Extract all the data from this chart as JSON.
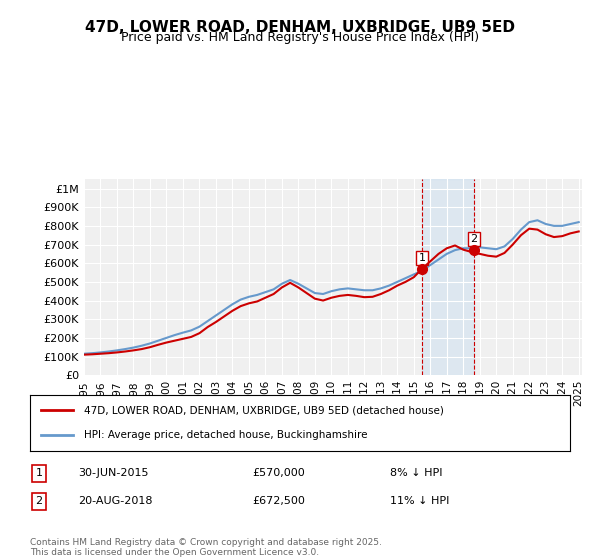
{
  "title": "47D, LOWER ROAD, DENHAM, UXBRIDGE, UB9 5ED",
  "subtitle": "Price paid vs. HM Land Registry's House Price Index (HPI)",
  "ylabel": "",
  "ylim": [
    0,
    1050000
  ],
  "yticks": [
    0,
    100000,
    200000,
    300000,
    400000,
    500000,
    600000,
    700000,
    800000,
    900000,
    1000000
  ],
  "ytick_labels": [
    "£0",
    "£100K",
    "£200K",
    "£300K",
    "£400K",
    "£500K",
    "£600K",
    "£700K",
    "£800K",
    "£900K",
    "£1M"
  ],
  "background_color": "#ffffff",
  "plot_bg_color": "#f0f0f0",
  "legend_label_red": "47D, LOWER ROAD, DENHAM, UXBRIDGE, UB9 5ED (detached house)",
  "legend_label_blue": "HPI: Average price, detached house, Buckinghamshire",
  "footer": "Contains HM Land Registry data © Crown copyright and database right 2025.\nThis data is licensed under the Open Government Licence v3.0.",
  "purchase1_date": "30-JUN-2015",
  "purchase1_price": "£570,000",
  "purchase1_hpi": "8% ↓ HPI",
  "purchase2_date": "20-AUG-2018",
  "purchase2_price": "£672,500",
  "purchase2_hpi": "11% ↓ HPI",
  "hpi_color": "#6699cc",
  "price_color": "#cc0000",
  "shade_color": "#cce0f0",
  "marker1_x": 2015.5,
  "marker1_y": 570000,
  "marker2_x": 2018.65,
  "marker2_y": 672500,
  "shade1_x": 2015.5,
  "shade2_x": 2018.65,
  "hpi_data_x": [
    1995,
    1995.5,
    1996,
    1996.5,
    1997,
    1997.5,
    1998,
    1998.5,
    1999,
    1999.5,
    2000,
    2000.5,
    2001,
    2001.5,
    2002,
    2002.5,
    2003,
    2003.5,
    2004,
    2004.5,
    2005,
    2005.5,
    2006,
    2006.5,
    2007,
    2007.5,
    2008,
    2008.5,
    2009,
    2009.5,
    2010,
    2010.5,
    2011,
    2011.5,
    2012,
    2012.5,
    2013,
    2013.5,
    2014,
    2014.5,
    2015,
    2015.5,
    2016,
    2016.5,
    2017,
    2017.5,
    2018,
    2018.5,
    2019,
    2019.5,
    2020,
    2020.5,
    2021,
    2021.5,
    2022,
    2022.5,
    2023,
    2023.5,
    2024,
    2024.5,
    2025
  ],
  "hpi_data_y": [
    115000,
    118000,
    122000,
    127000,
    133000,
    140000,
    148000,
    158000,
    170000,
    185000,
    200000,
    215000,
    228000,
    240000,
    260000,
    290000,
    320000,
    350000,
    380000,
    405000,
    420000,
    430000,
    445000,
    460000,
    490000,
    510000,
    490000,
    465000,
    440000,
    435000,
    450000,
    460000,
    465000,
    460000,
    455000,
    455000,
    465000,
    480000,
    500000,
    520000,
    540000,
    560000,
    590000,
    620000,
    650000,
    670000,
    680000,
    680000,
    685000,
    680000,
    675000,
    690000,
    730000,
    780000,
    820000,
    830000,
    810000,
    800000,
    800000,
    810000,
    820000
  ],
  "price_data_x": [
    1995,
    1995.5,
    1996,
    1996.5,
    1997,
    1997.5,
    1998,
    1998.5,
    1999,
    1999.5,
    2000,
    2000.5,
    2001,
    2001.5,
    2002,
    2002.5,
    2003,
    2003.5,
    2004,
    2004.5,
    2005,
    2005.5,
    2006,
    2006.5,
    2007,
    2007.5,
    2008,
    2008.5,
    2009,
    2009.5,
    2010,
    2010.5,
    2011,
    2011.5,
    2012,
    2012.5,
    2013,
    2013.5,
    2014,
    2014.5,
    2015,
    2015.5,
    2016,
    2016.5,
    2017,
    2017.5,
    2018,
    2018.5,
    2019,
    2019.5,
    2020,
    2020.5,
    2021,
    2021.5,
    2022,
    2022.5,
    2023,
    2023.5,
    2024,
    2024.5,
    2025
  ],
  "price_data_y": [
    110000,
    112000,
    115000,
    118000,
    122000,
    127000,
    133000,
    140000,
    150000,
    163000,
    175000,
    185000,
    195000,
    205000,
    225000,
    258000,
    285000,
    315000,
    345000,
    370000,
    385000,
    395000,
    415000,
    435000,
    470000,
    495000,
    470000,
    440000,
    410000,
    400000,
    415000,
    425000,
    430000,
    425000,
    418000,
    420000,
    435000,
    455000,
    480000,
    500000,
    525000,
    570000,
    610000,
    650000,
    680000,
    695000,
    672500,
    660000,
    650000,
    640000,
    635000,
    655000,
    700000,
    750000,
    785000,
    780000,
    755000,
    740000,
    745000,
    760000,
    770000
  ],
  "xticks": [
    1995,
    1996,
    1997,
    1998,
    1999,
    2000,
    2001,
    2002,
    2003,
    2004,
    2005,
    2006,
    2007,
    2008,
    2009,
    2010,
    2011,
    2012,
    2013,
    2014,
    2015,
    2016,
    2017,
    2018,
    2019,
    2020,
    2021,
    2022,
    2023,
    2024,
    2025
  ]
}
